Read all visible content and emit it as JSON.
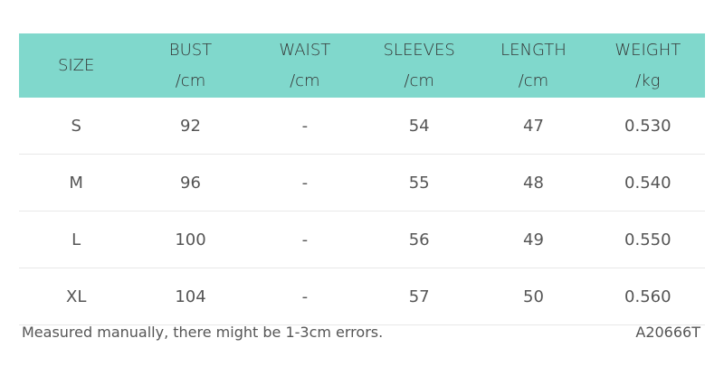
{
  "header_color": "#80d8cc",
  "columns": [
    {
      "label": "SIZE",
      "unit": ""
    },
    {
      "label": "BUST",
      "unit": "/cm"
    },
    {
      "label": "WAIST",
      "unit": "/cm"
    },
    {
      "label": "SLEEVES",
      "unit": "/cm"
    },
    {
      "label": "LENGTH",
      "unit": "/cm"
    },
    {
      "label": "WEIGHT",
      "unit": "/kg"
    }
  ],
  "rows": [
    [
      "S",
      "92",
      "-",
      "54",
      "47",
      "0.530"
    ],
    [
      "M",
      "96",
      "-",
      "55",
      "48",
      "0.540"
    ],
    [
      "L",
      "100",
      "-",
      "56",
      "49",
      "0.550"
    ],
    [
      "XL",
      "104",
      "-",
      "57",
      "50",
      "0.560"
    ]
  ],
  "footer": {
    "note": "Measured manually, there might be 1-3cm errors.",
    "code": "A20666T"
  }
}
